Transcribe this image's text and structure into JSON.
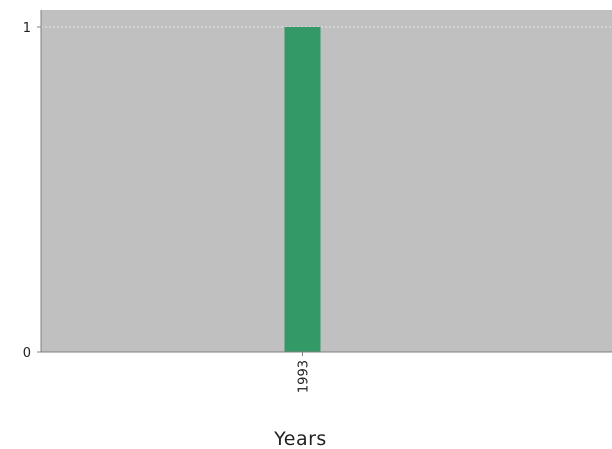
{
  "chart_data": {
    "type": "bar",
    "categories": [
      "1993"
    ],
    "values": [
      1
    ],
    "xlabel": "Years",
    "ylabel": "",
    "ylim": [
      0,
      1
    ],
    "yticks": [
      0,
      1
    ],
    "grid": true,
    "colors": {
      "bar": "#339966",
      "plot_background": "#c0c0c0",
      "gridline": "#e6e6e6",
      "axis": "#808080",
      "page_background": "#ffffff"
    }
  }
}
